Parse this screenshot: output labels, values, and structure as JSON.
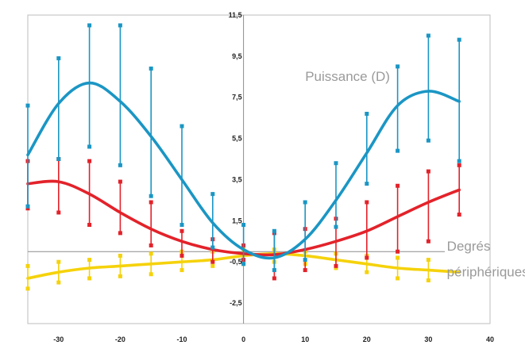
{
  "chart_data": {
    "type": "line",
    "title": "",
    "xlabel": "",
    "ylabel": "",
    "xlim": [
      -35,
      40
    ],
    "ylim": [
      -3.5,
      11.5
    ],
    "x_ticks": [
      -30,
      -20,
      -10,
      0,
      10,
      20,
      30,
      40
    ],
    "y_ticks": [
      -2.5,
      -0.5,
      1.5,
      3.5,
      5.5,
      7.5,
      9.5,
      11.5
    ],
    "x_tick_labels": [
      "-30",
      "-20",
      "-10",
      "0",
      "10",
      "20",
      "30",
      "40"
    ],
    "y_tick_labels": [
      "-2,5",
      "-0,5",
      "1,5",
      "3,5",
      "5,5",
      "7,5",
      "9,5",
      "11,5"
    ],
    "grid": false,
    "annotations": [
      {
        "text": "Puissance (D)",
        "x": 10,
        "y": 8.3
      },
      {
        "text": "Degrés",
        "x": 33,
        "y": 0.05
      },
      {
        "text": "périphériques",
        "x": 33,
        "y": -1.2
      }
    ],
    "series": [
      {
        "color": "#1b96c4",
        "curve": {
          "x": [
            -35,
            -30,
            -25,
            -20,
            -15,
            -10,
            -5,
            0,
            5,
            10,
            15,
            20,
            25,
            30,
            35
          ],
          "y": [
            4.7,
            7.2,
            8.2,
            7.3,
            5.6,
            3.5,
            1.4,
            0.1,
            -0.3,
            0.6,
            2.5,
            4.8,
            7.1,
            7.8,
            7.3
          ]
        },
        "errorbars": {
          "x": [
            -35,
            -30,
            -25,
            -20,
            -15,
            -10,
            -5,
            0,
            5,
            10,
            15,
            20,
            25,
            30,
            35
          ],
          "low": [
            2.2,
            4.5,
            5.1,
            4.2,
            2.7,
            1.3,
            0.2,
            -0.6,
            -0.9,
            -0.4,
            1.2,
            3.3,
            4.9,
            5.4,
            4.4
          ],
          "high": [
            7.1,
            9.4,
            11.0,
            11.0,
            8.9,
            6.1,
            2.8,
            1.3,
            1.0,
            2.4,
            4.3,
            6.7,
            9.0,
            10.5,
            10.3
          ]
        }
      },
      {
        "color": "#e3222a",
        "curve": {
          "x": [
            -35,
            -30,
            -25,
            -20,
            -15,
            -10,
            -5,
            0,
            5,
            10,
            15,
            20,
            25,
            30,
            35
          ],
          "y": [
            3.3,
            3.4,
            2.8,
            1.9,
            1.1,
            0.5,
            0.1,
            -0.1,
            -0.15,
            0.1,
            0.5,
            1.0,
            1.7,
            2.4,
            3.0
          ]
        },
        "errorbars": {
          "x": [
            -35,
            -30,
            -25,
            -20,
            -15,
            -10,
            -5,
            0,
            5,
            10,
            15,
            20,
            25,
            30,
            35
          ],
          "low": [
            2.1,
            1.9,
            1.3,
            0.9,
            0.3,
            -0.2,
            -0.5,
            -0.4,
            -1.3,
            -0.9,
            -0.7,
            -0.3,
            0.0,
            0.5,
            1.8
          ],
          "high": [
            4.4,
            4.5,
            4.4,
            3.4,
            2.4,
            1.0,
            0.6,
            0.3,
            0.9,
            1.1,
            1.6,
            2.4,
            3.2,
            3.9,
            4.2
          ]
        }
      },
      {
        "color": "#f5d20b",
        "curve": {
          "x": [
            -35,
            -30,
            -25,
            -20,
            -15,
            -10,
            -5,
            0,
            5,
            10,
            15,
            20,
            25,
            30,
            35
          ],
          "y": [
            -1.3,
            -1.0,
            -0.8,
            -0.7,
            -0.6,
            -0.5,
            -0.4,
            -0.2,
            -0.1,
            -0.2,
            -0.4,
            -0.6,
            -0.8,
            -0.9,
            -1.0
          ]
        },
        "errorbars": {
          "x": [
            -35,
            -30,
            -25,
            -20,
            -15,
            -10,
            -5,
            0,
            5,
            10,
            15,
            20,
            25,
            30
          ],
          "low": [
            -1.8,
            -1.5,
            -1.3,
            -1.2,
            -1.1,
            -0.9,
            -0.7,
            -0.6,
            -0.5,
            -0.6,
            -0.8,
            -1.0,
            -1.3,
            -1.4
          ],
          "high": [
            -0.7,
            -0.5,
            -0.4,
            -0.2,
            -0.1,
            0.0,
            0.0,
            0.1,
            0.1,
            0.0,
            -0.1,
            -0.2,
            -0.3,
            -0.4
          ]
        }
      }
    ]
  }
}
